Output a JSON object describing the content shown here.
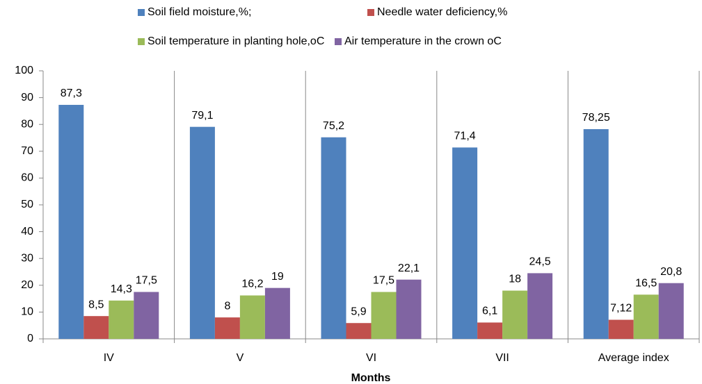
{
  "chart_data": {
    "type": "bar",
    "x_label": "Months",
    "categories": [
      "IV",
      "V",
      "VI",
      "VII",
      "Average index"
    ],
    "series": [
      {
        "name": "Soil field moisture,%;",
        "color": "#4f81bd",
        "values": [
          87.3,
          79.1,
          75.2,
          71.4,
          78.25
        ],
        "value_labels": [
          "87,3",
          "79,1",
          "75,2",
          "71,4",
          "78,25"
        ]
      },
      {
        "name": "Needle water deficiency,%",
        "color": "#c0504d",
        "values": [
          8.5,
          8,
          5.9,
          6.1,
          7.12
        ],
        "value_labels": [
          "8,5",
          "8",
          "5,9",
          "6,1",
          "7,12"
        ]
      },
      {
        "name": "Soil temperature in planting hole,oC",
        "color": "#9bbb59",
        "values": [
          14.3,
          16.2,
          17.5,
          18,
          16.5
        ],
        "value_labels": [
          "14,3",
          "16,2",
          "17,5",
          "18",
          "16,5"
        ]
      },
      {
        "name": "Air temperature in the crown oC",
        "color": "#8064a2",
        "values": [
          17.5,
          19,
          22.1,
          24.5,
          20.8
        ],
        "value_labels": [
          "17,5",
          "19",
          "22,1",
          "24,5",
          "20,8"
        ]
      }
    ],
    "ylim": [
      0,
      100
    ],
    "yticks": [
      0,
      10,
      20,
      30,
      40,
      50,
      60,
      70,
      80,
      90,
      100
    ]
  }
}
